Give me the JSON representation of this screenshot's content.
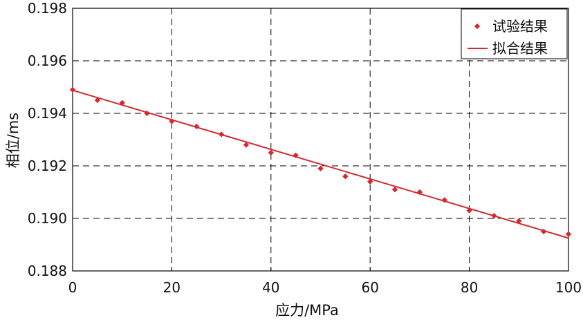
{
  "chart_data": {
    "type": "scatter",
    "title": "",
    "xlabel": "应力/MPa",
    "ylabel": "相位/ms",
    "xlim": [
      0,
      100
    ],
    "ylim": [
      0.188,
      0.198
    ],
    "x_ticks": [
      "0",
      "20",
      "40",
      "60",
      "80",
      "100"
    ],
    "y_ticks": [
      "0.188",
      "0.190",
      "0.192",
      "0.194",
      "0.196",
      "0.198"
    ],
    "grid": true,
    "legend_position": "top-right",
    "series": [
      {
        "name": "试验结果",
        "kind": "markers",
        "marker": "diamond",
        "color": "#d42a2f",
        "x": [
          0,
          5,
          10,
          15,
          20,
          25,
          30,
          35,
          40,
          45,
          50,
          55,
          60,
          65,
          70,
          75,
          80,
          85,
          90,
          95,
          100
        ],
        "y": [
          0.1949,
          0.1945,
          0.1944,
          0.194,
          0.1937,
          0.1935,
          0.1932,
          0.1928,
          0.1925,
          0.1924,
          0.1919,
          0.1916,
          0.1914,
          0.1911,
          0.191,
          0.1907,
          0.1903,
          0.1901,
          0.1899,
          0.1895,
          0.1894
        ]
      },
      {
        "name": "拟合结果",
        "kind": "line",
        "color": "#d42a2f",
        "x": [
          0,
          100
        ],
        "y": [
          0.19488,
          0.18925
        ]
      }
    ]
  }
}
